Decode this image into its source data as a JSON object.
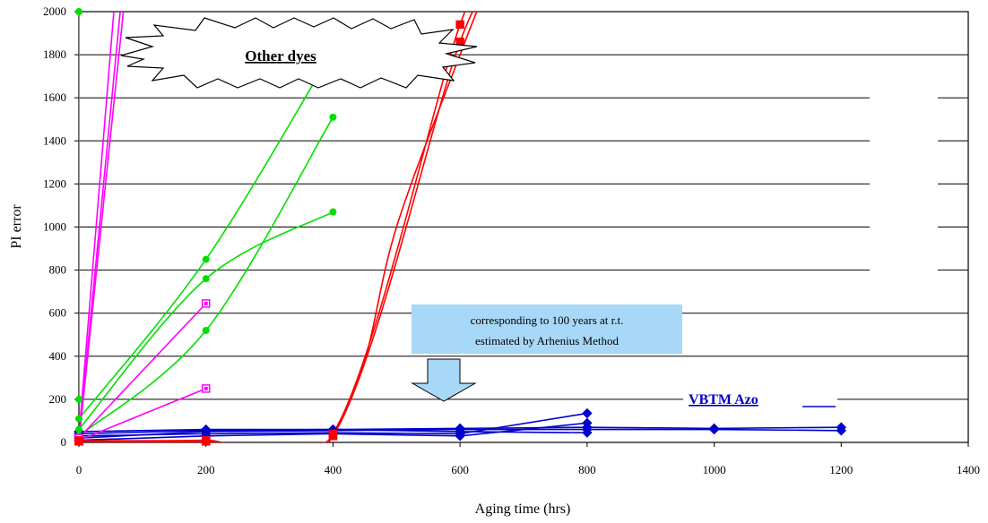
{
  "chart_data": {
    "type": "line",
    "xlabel": "Aging time (hrs)",
    "ylabel": "PI error",
    "xlim": [
      0,
      1400
    ],
    "ylim": [
      0,
      2000
    ],
    "xticks": [
      "0",
      "200",
      "400",
      "600",
      "800",
      "1000",
      "1200",
      "1400"
    ],
    "yticks": [
      "0",
      "200",
      "400",
      "600",
      "800",
      "1000",
      "1200",
      "1400",
      "1600",
      "1800",
      "2000"
    ],
    "grid": "horizontal",
    "annotations": {
      "other_dyes": "Other dyes",
      "arrow_line1": "corresponding to 100 years at r.t.",
      "arrow_line2": "estimated by Arhenius Method",
      "vbtm": "VBTM Azo"
    },
    "colors": {
      "blue": "#0000cc",
      "green": "#00e000",
      "magenta": "#ff00ff",
      "red": "#ff0000",
      "callout_fill": "#a8d8f8",
      "arrow_fill": "#a8d8f8"
    },
    "series": [
      {
        "color": "blue",
        "marker": "diamond",
        "curve": false,
        "points": [
          [
            0,
            20
          ],
          [
            200,
            50
          ],
          [
            400,
            55
          ],
          [
            600,
            60
          ],
          [
            800,
            60
          ],
          [
            1000,
            60
          ],
          [
            1200,
            55
          ]
        ]
      },
      {
        "color": "blue",
        "marker": "diamond",
        "curve": false,
        "points": [
          [
            0,
            50
          ],
          [
            200,
            60
          ],
          [
            400,
            60
          ],
          [
            600,
            65
          ],
          [
            800,
            70
          ],
          [
            1000,
            65
          ],
          [
            1200,
            70
          ]
        ]
      },
      {
        "color": "blue",
        "marker": "diamond",
        "curve": false,
        "points": [
          [
            0,
            30
          ],
          [
            200,
            40
          ],
          [
            400,
            45
          ],
          [
            600,
            40
          ],
          [
            800,
            135
          ]
        ]
      },
      {
        "color": "blue",
        "marker": "diamond",
        "curve": false,
        "points": [
          [
            0,
            10
          ],
          [
            200,
            30
          ],
          [
            400,
            40
          ],
          [
            600,
            30
          ],
          [
            800,
            90
          ]
        ]
      },
      {
        "color": "blue",
        "marker": "diamond",
        "curve": false,
        "points": [
          [
            0,
            40
          ],
          [
            200,
            55
          ],
          [
            400,
            60
          ],
          [
            600,
            50
          ],
          [
            800,
            45
          ]
        ]
      },
      {
        "color": "green",
        "marker": "circle",
        "curve": true,
        "points": [
          [
            0,
            110
          ],
          [
            200,
            850
          ],
          [
            400,
            1820
          ]
        ]
      },
      {
        "color": "green",
        "marker": "circle",
        "curve": true,
        "points": [
          [
            0,
            60
          ],
          [
            200,
            760
          ],
          [
            400,
            1070
          ]
        ]
      },
      {
        "color": "green",
        "marker": "circle",
        "curve": true,
        "points": [
          [
            0,
            30
          ],
          [
            200,
            520
          ],
          [
            400,
            1510
          ]
        ]
      },
      {
        "color": "green",
        "marker": "circle",
        "curve": false,
        "points": [
          [
            0,
            200
          ],
          [
            0,
            2000
          ]
        ]
      },
      {
        "color": "magenta",
        "marker": "square",
        "curve": false,
        "points": [
          [
            0,
            20
          ],
          [
            200,
            645
          ]
        ]
      },
      {
        "color": "magenta",
        "marker": "square",
        "curve": false,
        "points": [
          [
            0,
            10
          ],
          [
            200,
            250
          ]
        ]
      },
      {
        "color": "magenta",
        "marker": "none",
        "curve": false,
        "points": [
          [
            0,
            30
          ],
          [
            55,
            2000
          ]
        ]
      },
      {
        "color": "magenta",
        "marker": "none",
        "curve": false,
        "points": [
          [
            0,
            15
          ],
          [
            65,
            2000
          ]
        ]
      },
      {
        "color": "magenta",
        "marker": "none",
        "curve": false,
        "points": [
          [
            0,
            5
          ],
          [
            70,
            2000
          ]
        ]
      },
      {
        "color": "red",
        "marker": "square",
        "curve": true,
        "points": [
          [
            0,
            5
          ],
          [
            200,
            5
          ],
          [
            400,
            40
          ],
          [
            600,
            1940
          ],
          [
            650,
            2100
          ]
        ]
      },
      {
        "color": "red",
        "marker": "square",
        "curve": true,
        "points": [
          [
            0,
            8
          ],
          [
            200,
            10
          ],
          [
            400,
            30
          ],
          [
            600,
            1860
          ],
          [
            660,
            2100
          ]
        ]
      },
      {
        "color": "red",
        "marker": "none",
        "curve": true,
        "points": [
          [
            380,
            0
          ],
          [
            400,
            40
          ],
          [
            450,
            380
          ],
          [
            500,
            1000
          ],
          [
            600,
            1800
          ],
          [
            640,
            2100
          ]
        ]
      },
      {
        "color": "red",
        "marker": "none",
        "curve": false,
        "points": [
          [
            200,
            20
          ],
          [
            250,
            -50
          ]
        ]
      }
    ]
  }
}
